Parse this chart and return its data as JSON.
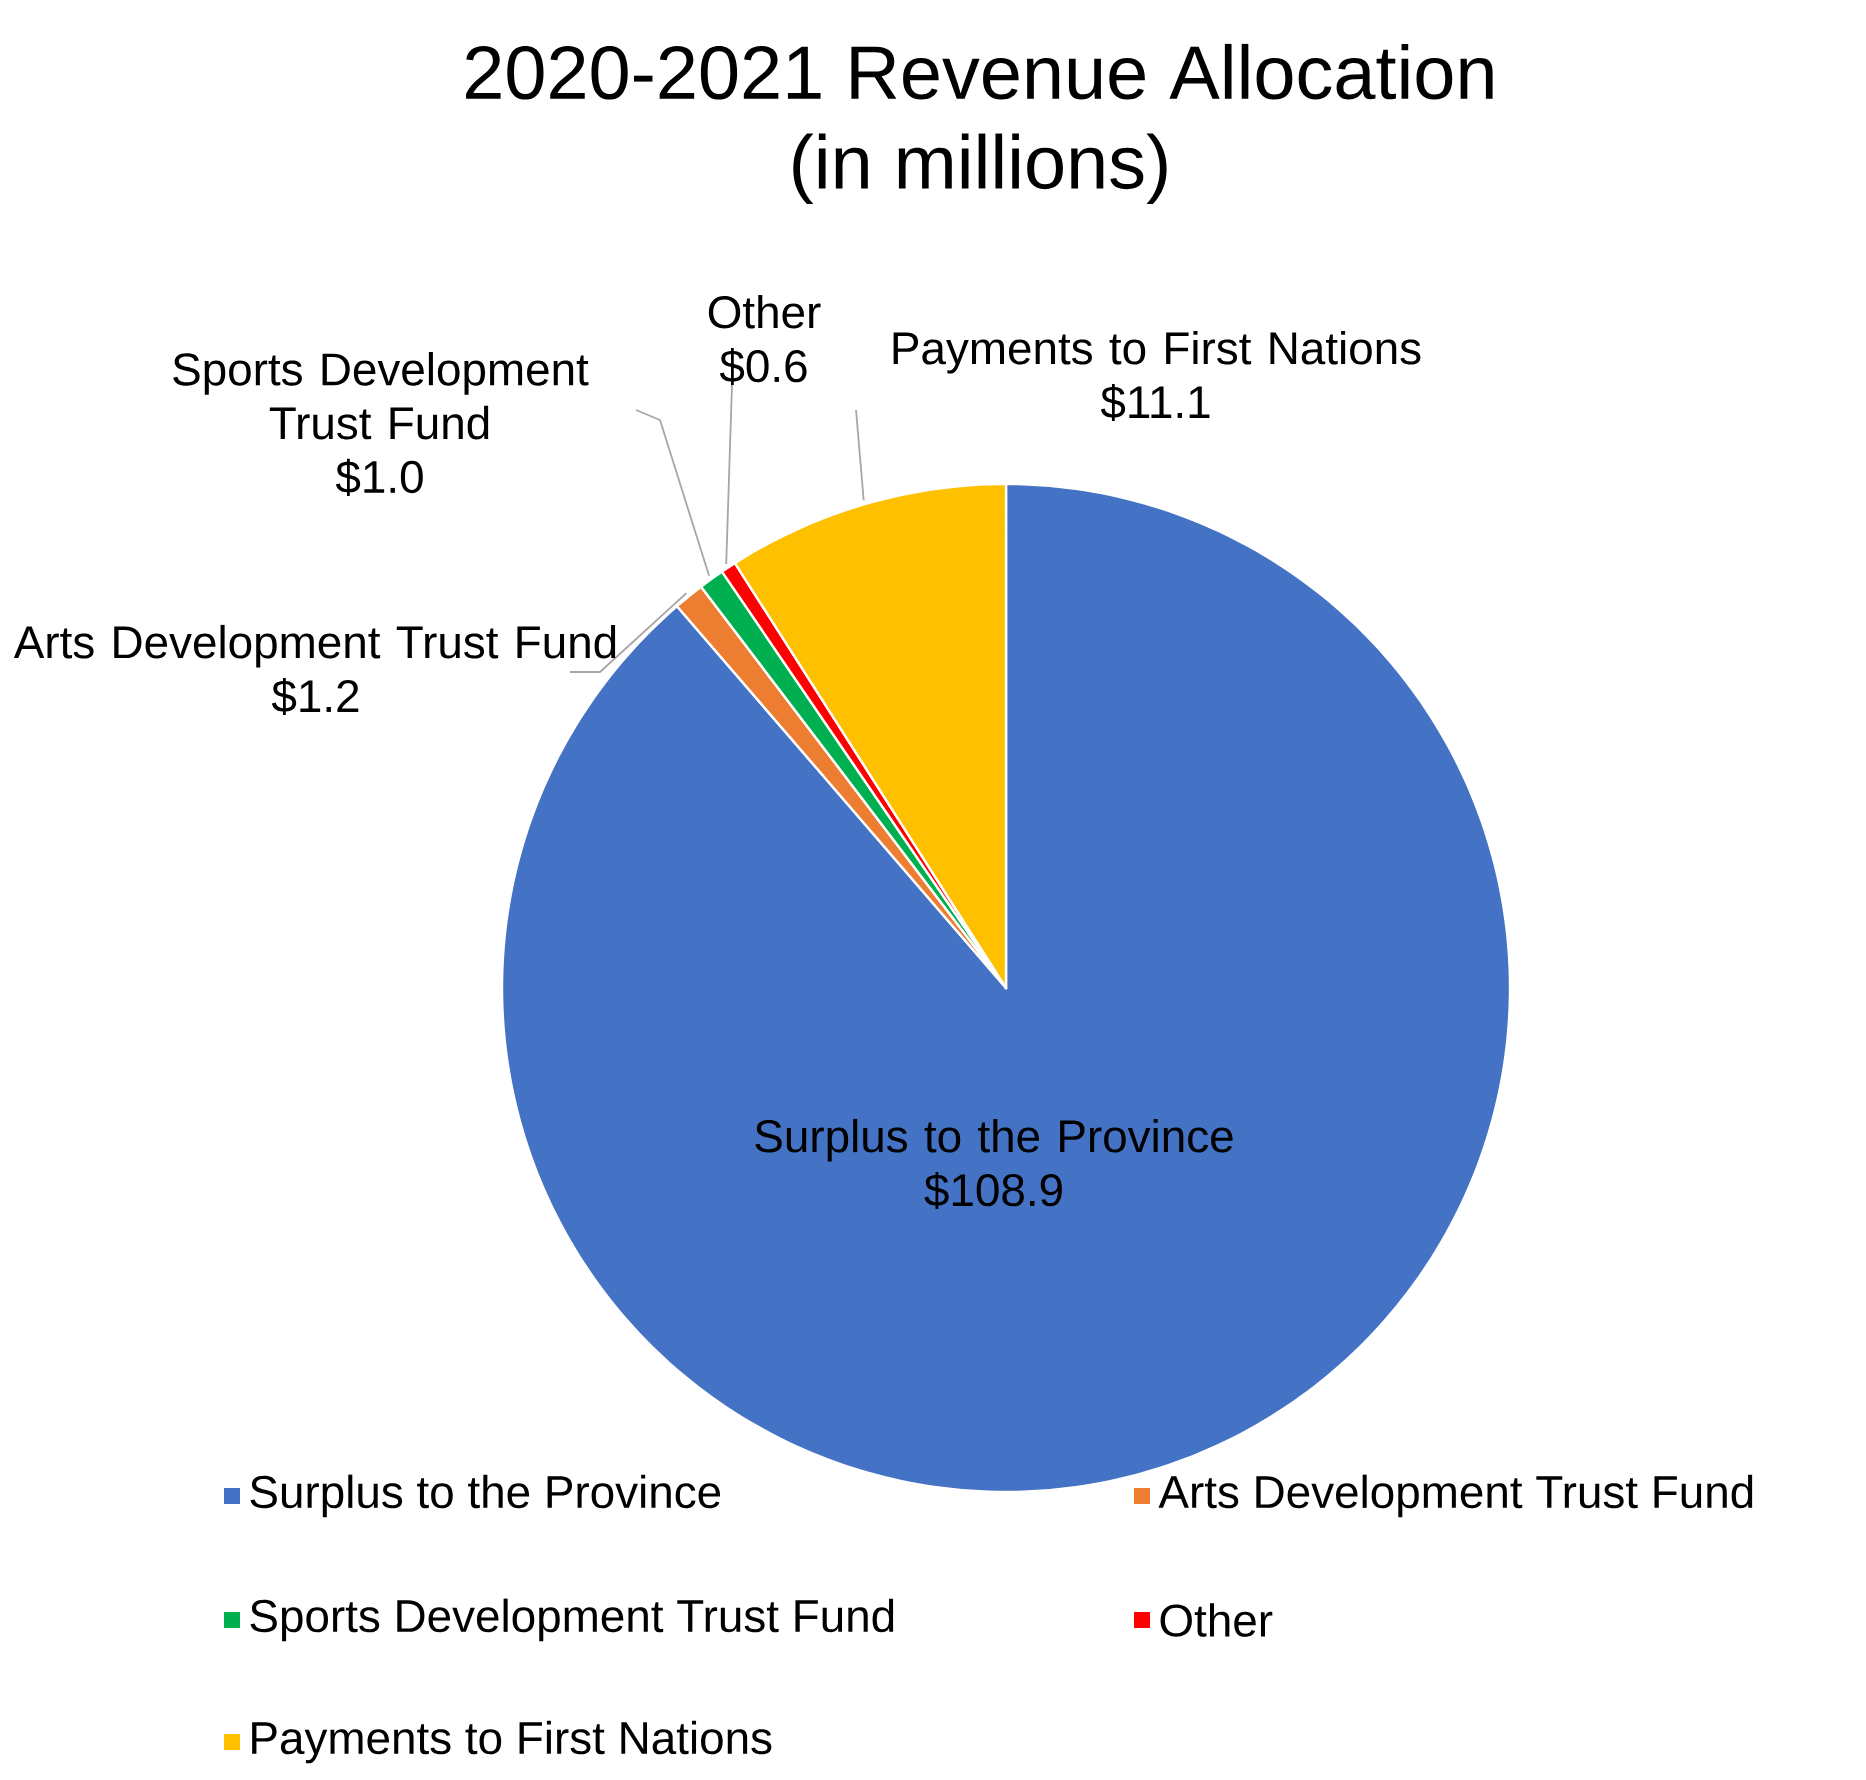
{
  "chart_data": {
    "type": "pie",
    "title": "2020-2021 Revenue Allocation",
    "subtitle": "(in millions)",
    "categories": [
      "Surplus to the Province",
      "Arts Development Trust Fund",
      "Sports Development Trust Fund",
      "Other",
      "Payments to First Nations"
    ],
    "values": [
      108.9,
      1.2,
      1.0,
      0.6,
      11.1
    ],
    "value_labels": [
      "$108.9",
      "$1.2",
      "$1.0",
      "$0.6",
      "$11.1"
    ],
    "colors": [
      "#4472c4",
      "#ed7d31",
      "#00b050",
      "#ff0000",
      "#ffc000"
    ],
    "legend": "bottom"
  }
}
